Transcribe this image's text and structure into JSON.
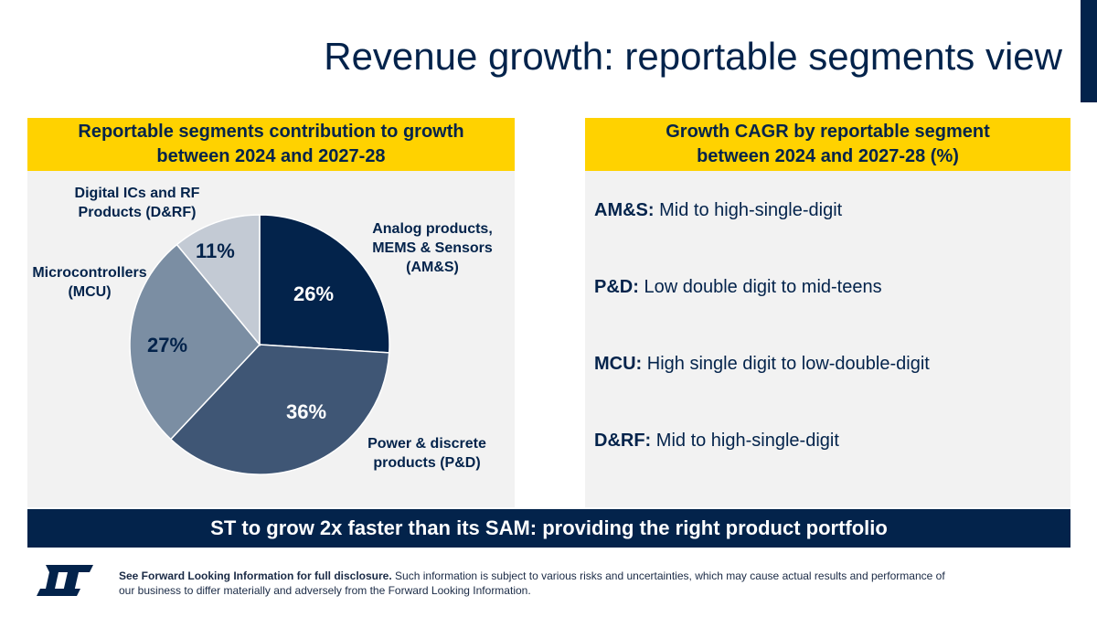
{
  "title": "Revenue growth: reportable segments view",
  "left_panel": {
    "header_line1": "Reportable segments contribution to growth",
    "header_line2": "between 2024 and 2027-28"
  },
  "right_panel": {
    "header_line1": "Growth CAGR by reportable segment",
    "header_line2": "between 2024 and 2027-28 (%)",
    "rows": [
      {
        "key": "AM&S:",
        "value": "Mid to high-single-digit"
      },
      {
        "key": "P&D:",
        "value": "Low double digit to mid-teens"
      },
      {
        "key": "MCU:",
        "value": "High single digit to low-double-digit"
      },
      {
        "key": "D&RF:",
        "value": "Mid to high-single-digit"
      }
    ]
  },
  "chart_data": {
    "type": "pie",
    "slices": [
      {
        "label_lines": [
          "Analog products,",
          "MEMS & Sensors",
          "(AM&S)"
        ],
        "value": 26,
        "value_label": "26%",
        "color": "#03234b",
        "text_color": "#ffffff"
      },
      {
        "label_lines": [
          "Power & discrete",
          "products (P&D)"
        ],
        "value": 36,
        "value_label": "36%",
        "color": "#3f5675",
        "text_color": "#ffffff"
      },
      {
        "label_lines": [
          "Microcontrollers",
          "(MCU)"
        ],
        "value": 27,
        "value_label": "27%",
        "color": "#7b8ea3",
        "text_color": "#03234b"
      },
      {
        "label_lines": [
          "Digital ICs and RF",
          "Products (D&RF)"
        ],
        "value": 11,
        "value_label": "11%",
        "color": "#c3cad4",
        "text_color": "#03234b"
      }
    ],
    "start": "12 o'clock",
    "direction": "clockwise"
  },
  "banner": "ST to grow 2x faster than its SAM: providing the right product portfolio",
  "footer": {
    "logo_text": "ST",
    "disclaimer_bold": "See Forward Looking Information for full disclosure.",
    "disclaimer_rest": " Such information is subject to various risks and uncertainties, which may cause actual results and performance of our business to differ materially and adversely from the Forward Looking Information."
  },
  "colors": {
    "navy": "#03234b",
    "yellow": "#ffd200",
    "panel_bg": "#f2f2f2"
  }
}
